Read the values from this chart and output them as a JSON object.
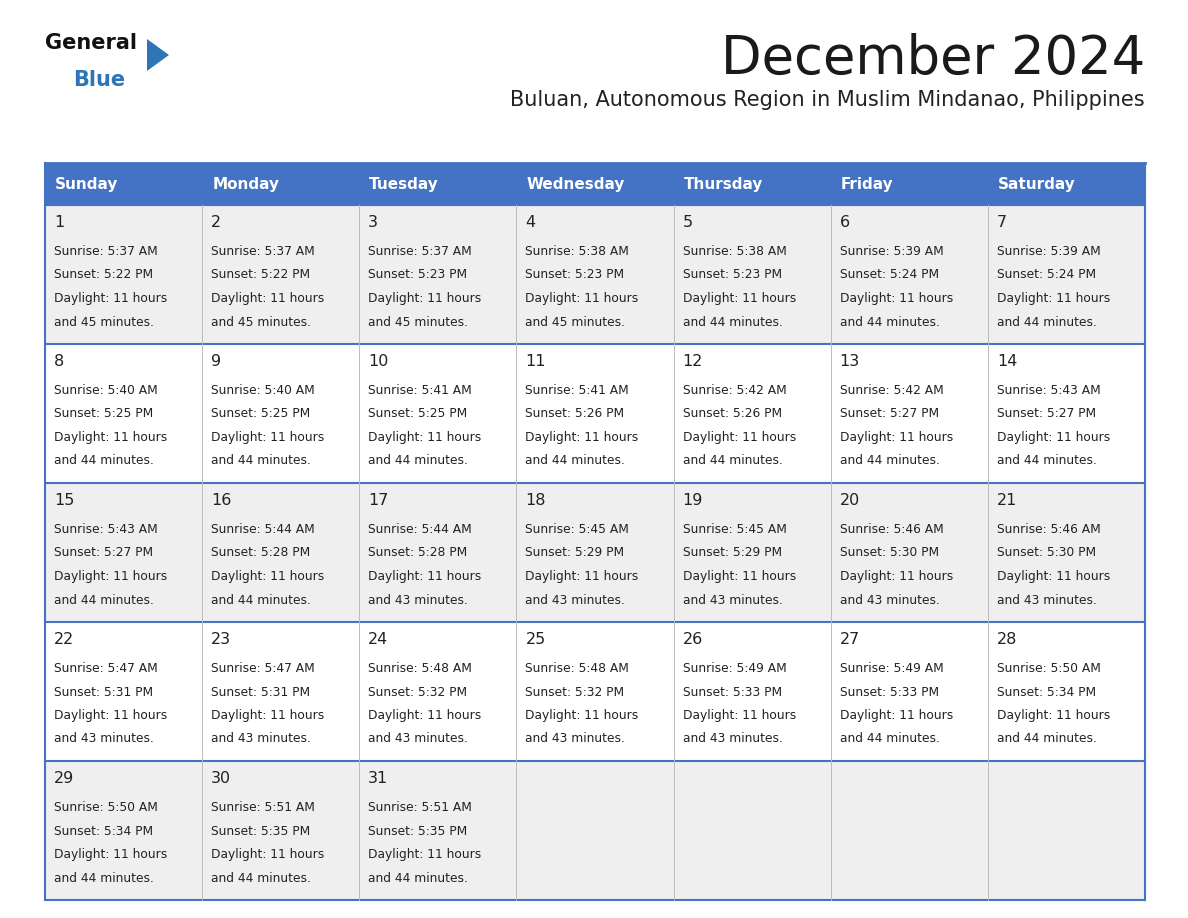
{
  "title": "December 2024",
  "subtitle": "Buluan, Autonomous Region in Muslim Mindanao, Philippines",
  "days_of_week": [
    "Sunday",
    "Monday",
    "Tuesday",
    "Wednesday",
    "Thursday",
    "Friday",
    "Saturday"
  ],
  "header_bg": "#4472C4",
  "header_text_color": "#FFFFFF",
  "row_bg_odd": "#EFEFEF",
  "row_bg_even": "#FFFFFF",
  "border_color": "#4472C4",
  "separator_color": "#4472C4",
  "text_color": "#222222",
  "logo_black": "#111111",
  "logo_blue": "#2E75B6",
  "calendar_data": [
    {
      "day": 1,
      "col": 0,
      "row": 0,
      "sunrise": "5:37 AM",
      "sunset": "5:22 PM",
      "daylight": "11 hours",
      "daylight2": "and 45 minutes."
    },
    {
      "day": 2,
      "col": 1,
      "row": 0,
      "sunrise": "5:37 AM",
      "sunset": "5:22 PM",
      "daylight": "11 hours",
      "daylight2": "and 45 minutes."
    },
    {
      "day": 3,
      "col": 2,
      "row": 0,
      "sunrise": "5:37 AM",
      "sunset": "5:23 PM",
      "daylight": "11 hours",
      "daylight2": "and 45 minutes."
    },
    {
      "day": 4,
      "col": 3,
      "row": 0,
      "sunrise": "5:38 AM",
      "sunset": "5:23 PM",
      "daylight": "11 hours",
      "daylight2": "and 45 minutes."
    },
    {
      "day": 5,
      "col": 4,
      "row": 0,
      "sunrise": "5:38 AM",
      "sunset": "5:23 PM",
      "daylight": "11 hours",
      "daylight2": "and 44 minutes."
    },
    {
      "day": 6,
      "col": 5,
      "row": 0,
      "sunrise": "5:39 AM",
      "sunset": "5:24 PM",
      "daylight": "11 hours",
      "daylight2": "and 44 minutes."
    },
    {
      "day": 7,
      "col": 6,
      "row": 0,
      "sunrise": "5:39 AM",
      "sunset": "5:24 PM",
      "daylight": "11 hours",
      "daylight2": "and 44 minutes."
    },
    {
      "day": 8,
      "col": 0,
      "row": 1,
      "sunrise": "5:40 AM",
      "sunset": "5:25 PM",
      "daylight": "11 hours",
      "daylight2": "and 44 minutes."
    },
    {
      "day": 9,
      "col": 1,
      "row": 1,
      "sunrise": "5:40 AM",
      "sunset": "5:25 PM",
      "daylight": "11 hours",
      "daylight2": "and 44 minutes."
    },
    {
      "day": 10,
      "col": 2,
      "row": 1,
      "sunrise": "5:41 AM",
      "sunset": "5:25 PM",
      "daylight": "11 hours",
      "daylight2": "and 44 minutes."
    },
    {
      "day": 11,
      "col": 3,
      "row": 1,
      "sunrise": "5:41 AM",
      "sunset": "5:26 PM",
      "daylight": "11 hours",
      "daylight2": "and 44 minutes."
    },
    {
      "day": 12,
      "col": 4,
      "row": 1,
      "sunrise": "5:42 AM",
      "sunset": "5:26 PM",
      "daylight": "11 hours",
      "daylight2": "and 44 minutes."
    },
    {
      "day": 13,
      "col": 5,
      "row": 1,
      "sunrise": "5:42 AM",
      "sunset": "5:27 PM",
      "daylight": "11 hours",
      "daylight2": "and 44 minutes."
    },
    {
      "day": 14,
      "col": 6,
      "row": 1,
      "sunrise": "5:43 AM",
      "sunset": "5:27 PM",
      "daylight": "11 hours",
      "daylight2": "and 44 minutes."
    },
    {
      "day": 15,
      "col": 0,
      "row": 2,
      "sunrise": "5:43 AM",
      "sunset": "5:27 PM",
      "daylight": "11 hours",
      "daylight2": "and 44 minutes."
    },
    {
      "day": 16,
      "col": 1,
      "row": 2,
      "sunrise": "5:44 AM",
      "sunset": "5:28 PM",
      "daylight": "11 hours",
      "daylight2": "and 44 minutes."
    },
    {
      "day": 17,
      "col": 2,
      "row": 2,
      "sunrise": "5:44 AM",
      "sunset": "5:28 PM",
      "daylight": "11 hours",
      "daylight2": "and 43 minutes."
    },
    {
      "day": 18,
      "col": 3,
      "row": 2,
      "sunrise": "5:45 AM",
      "sunset": "5:29 PM",
      "daylight": "11 hours",
      "daylight2": "and 43 minutes."
    },
    {
      "day": 19,
      "col": 4,
      "row": 2,
      "sunrise": "5:45 AM",
      "sunset": "5:29 PM",
      "daylight": "11 hours",
      "daylight2": "and 43 minutes."
    },
    {
      "day": 20,
      "col": 5,
      "row": 2,
      "sunrise": "5:46 AM",
      "sunset": "5:30 PM",
      "daylight": "11 hours",
      "daylight2": "and 43 minutes."
    },
    {
      "day": 21,
      "col": 6,
      "row": 2,
      "sunrise": "5:46 AM",
      "sunset": "5:30 PM",
      "daylight": "11 hours",
      "daylight2": "and 43 minutes."
    },
    {
      "day": 22,
      "col": 0,
      "row": 3,
      "sunrise": "5:47 AM",
      "sunset": "5:31 PM",
      "daylight": "11 hours",
      "daylight2": "and 43 minutes."
    },
    {
      "day": 23,
      "col": 1,
      "row": 3,
      "sunrise": "5:47 AM",
      "sunset": "5:31 PM",
      "daylight": "11 hours",
      "daylight2": "and 43 minutes."
    },
    {
      "day": 24,
      "col": 2,
      "row": 3,
      "sunrise": "5:48 AM",
      "sunset": "5:32 PM",
      "daylight": "11 hours",
      "daylight2": "and 43 minutes."
    },
    {
      "day": 25,
      "col": 3,
      "row": 3,
      "sunrise": "5:48 AM",
      "sunset": "5:32 PM",
      "daylight": "11 hours",
      "daylight2": "and 43 minutes."
    },
    {
      "day": 26,
      "col": 4,
      "row": 3,
      "sunrise": "5:49 AM",
      "sunset": "5:33 PM",
      "daylight": "11 hours",
      "daylight2": "and 43 minutes."
    },
    {
      "day": 27,
      "col": 5,
      "row": 3,
      "sunrise": "5:49 AM",
      "sunset": "5:33 PM",
      "daylight": "11 hours",
      "daylight2": "and 44 minutes."
    },
    {
      "day": 28,
      "col": 6,
      "row": 3,
      "sunrise": "5:50 AM",
      "sunset": "5:34 PM",
      "daylight": "11 hours",
      "daylight2": "and 44 minutes."
    },
    {
      "day": 29,
      "col": 0,
      "row": 4,
      "sunrise": "5:50 AM",
      "sunset": "5:34 PM",
      "daylight": "11 hours",
      "daylight2": "and 44 minutes."
    },
    {
      "day": 30,
      "col": 1,
      "row": 4,
      "sunrise": "5:51 AM",
      "sunset": "5:35 PM",
      "daylight": "11 hours",
      "daylight2": "and 44 minutes."
    },
    {
      "day": 31,
      "col": 2,
      "row": 4,
      "sunrise": "5:51 AM",
      "sunset": "5:35 PM",
      "daylight": "11 hours",
      "daylight2": "and 44 minutes."
    }
  ]
}
